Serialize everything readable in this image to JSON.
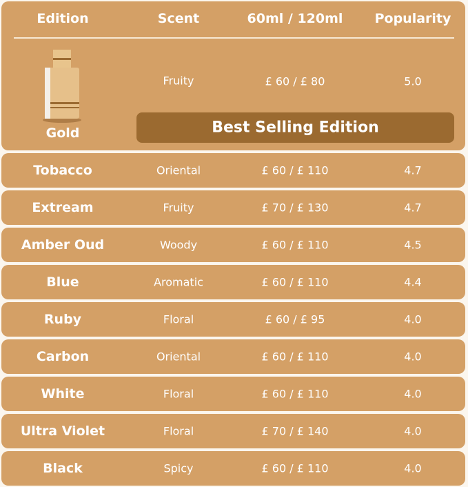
{
  "colors": {
    "card": "#d4a066",
    "banner": "#9b6a30",
    "text": "#ffffff"
  },
  "header": {
    "edition": "Edition",
    "scent": "Scent",
    "price": "60ml / 120ml",
    "popularity": "Popularity"
  },
  "featured": {
    "edition": "Gold",
    "scent": "Fruity",
    "price": "£ 60 / £ 80",
    "popularity": "5.0",
    "banner": "Best Selling Edition",
    "image": "perfume-bottle-gold"
  },
  "rows": [
    {
      "edition": "Tobacco",
      "scent": "Oriental",
      "price": "£ 60 / £ 110",
      "popularity": "4.7"
    },
    {
      "edition": "Extream",
      "scent": "Fruity",
      "price": "£ 70 / £ 130",
      "popularity": "4.7"
    },
    {
      "edition": "Amber Oud",
      "scent": "Woody",
      "price": "£ 60 / £ 110",
      "popularity": "4.5"
    },
    {
      "edition": "Blue",
      "scent": "Aromatic",
      "price": "£ 60 / £ 110",
      "popularity": "4.4"
    },
    {
      "edition": "Ruby",
      "scent": "Floral",
      "price": "£ 60 / £ 95",
      "popularity": "4.0"
    },
    {
      "edition": "Carbon",
      "scent": "Oriental",
      "price": "£ 60 / £ 110",
      "popularity": "4.0"
    },
    {
      "edition": "White",
      "scent": "Floral",
      "price": "£ 60 / £ 110",
      "popularity": "4.0"
    },
    {
      "edition": "Ultra Violet",
      "scent": "Floral",
      "price": "£ 70 / £ 140",
      "popularity": "4.0"
    },
    {
      "edition": "Black",
      "scent": "Spicy",
      "price": "£ 60 / £ 110",
      "popularity": "4.0"
    }
  ]
}
